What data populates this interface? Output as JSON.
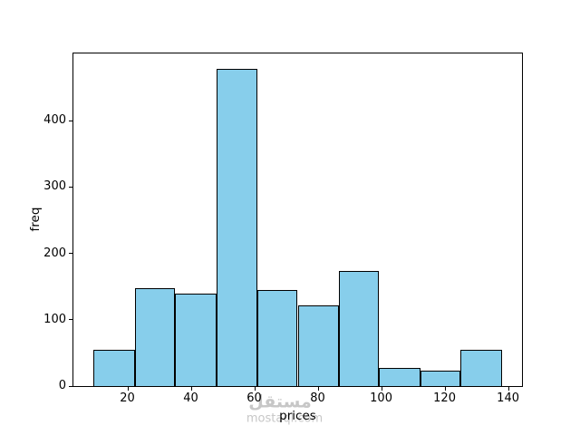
{
  "figure": {
    "background": "#ffffff"
  },
  "chart_data": {
    "type": "bar",
    "subtype": "histogram",
    "title": "",
    "xlabel": "prices",
    "ylabel": "freq",
    "bin_edges": [
      9.4,
      22.3,
      35.1,
      48.0,
      60.9,
      73.7,
      86.6,
      99.4,
      112.3,
      125.1,
      138.0
    ],
    "values": [
      55,
      148,
      140,
      478,
      145,
      122,
      173,
      27,
      23,
      55
    ],
    "x_ticks": [
      20,
      40,
      60,
      80,
      100,
      120,
      140
    ],
    "y_ticks": [
      0,
      100,
      200,
      300,
      400
    ],
    "xlim": [
      3.0,
      144.4
    ],
    "ylim": [
      0,
      502
    ],
    "grid": false,
    "legend_position": "none",
    "bar_fill_color": "#87CEEB",
    "bar_edge_color": "#000000",
    "axis_color": "#000000",
    "text_color": "#000000"
  },
  "watermark": {
    "line1": "مستقل",
    "line2": "mostaql.com",
    "color": "#c7c7c7"
  }
}
